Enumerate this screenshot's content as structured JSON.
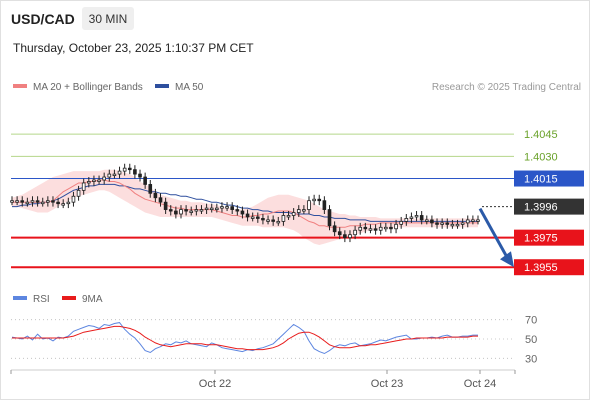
{
  "header": {
    "symbol": "USD/CAD",
    "timeframe": "30 MIN",
    "datetime": "Thursday, October 23, 2025 1:10:37 PM CET"
  },
  "legend": {
    "ma20_label": "MA 20 + Bollinger Bands",
    "ma50_label": "MA 50",
    "credit": "Research © 2025 Trading Central"
  },
  "colors": {
    "candle": "#222222",
    "band_fill": "#fbd3d3",
    "ma20": "#f08080",
    "ma50": "#2e4f9e",
    "resistance_green": "#b5d68a",
    "pivot_blue": "#2b56c8",
    "support_red": "#e8131b",
    "current_dark": "#333333",
    "rsi": "#5d86e0",
    "rsi_ma": "#e81c1c",
    "label_green_text": "#6aa22a"
  },
  "chart_data": [
    {
      "type": "line",
      "title": "USD/CAD",
      "timeframe": "30 MIN",
      "x_ticks": [
        "Oct 22",
        "Oct 23",
        "Oct 24"
      ],
      "ylim": [
        1.3945,
        1.406
      ],
      "series": [
        {
          "name": "Price",
          "values": [
            1.4,
            1.4,
            1.3999,
            1.3999,
            1.4,
            1.3999,
            1.3999,
            1.4,
            1.3999,
            1.3998,
            1.3998,
            1.3999,
            1.4003,
            1.4007,
            1.4012,
            1.4013,
            1.4014,
            1.4014,
            1.4016,
            1.4018,
            1.4018,
            1.402,
            1.4022,
            1.4021,
            1.4018,
            1.4016,
            1.4011,
            1.4005,
            1.4002,
            1.3999,
            1.3994,
            1.3993,
            1.3991,
            1.3994,
            1.3993,
            1.3993,
            1.3994,
            1.3994,
            1.3995,
            1.3995,
            1.3995,
            1.3996,
            1.3996,
            1.3994,
            1.3993,
            1.3991,
            1.3989,
            1.3989,
            1.3988,
            1.3987,
            1.3987,
            1.3986,
            1.3986,
            1.399,
            1.399,
            1.3992,
            1.3994,
            1.3994,
            1.4,
            1.4001,
            1.4,
            1.3994,
            1.3983,
            1.3979,
            1.3977,
            1.3975,
            1.3977,
            1.398,
            1.3982,
            1.3981,
            1.3981,
            1.398,
            1.3982,
            1.3982,
            1.3981,
            1.3984,
            1.3986,
            1.3988,
            1.3989,
            1.399,
            1.3987,
            1.3987,
            1.3985,
            1.3984,
            1.3985,
            1.3984,
            1.3984,
            1.3984,
            1.3985,
            1.3987,
            1.3987,
            1.3987
          ]
        },
        {
          "name": "MA 20",
          "values": [
            1.3999,
            1.3999,
            1.3999,
            1.3999,
            1.3999,
            1.3999,
            1.3999,
            1.3999,
            1.4,
            1.4003,
            1.4006,
            1.4008,
            1.401,
            1.4012,
            1.4012,
            1.4013,
            1.4013,
            1.4014,
            1.4014,
            1.4013,
            1.4013,
            1.4012,
            1.401,
            1.4008,
            1.4005,
            1.4003,
            1.4001,
            1.4,
            1.3999,
            1.3998,
            1.3997,
            1.3996,
            1.3995,
            1.3995,
            1.3994,
            1.3994,
            1.3994,
            1.3994,
            1.3994,
            1.3994,
            1.3993,
            1.3992,
            1.3991,
            1.399,
            1.399,
            1.3989,
            1.3989,
            1.399,
            1.399,
            1.3991,
            1.3991,
            1.3992,
            1.3993,
            1.3993,
            1.3993,
            1.3992,
            1.399,
            1.3988,
            1.3986,
            1.3985,
            1.3983,
            1.3983,
            1.3982,
            1.3982,
            1.3982,
            1.3982,
            1.3983,
            1.3983,
            1.3983,
            1.3984,
            1.3984,
            1.3984,
            1.3985,
            1.3985,
            1.3985,
            1.3985,
            1.3985,
            1.3985,
            1.3985,
            1.3985,
            1.3985,
            1.3985,
            1.3985,
            1.3985,
            1.3985,
            1.3985,
            1.3985,
            1.3985,
            1.3985,
            1.3985,
            1.3985,
            1.3985
          ]
        },
        {
          "name": "MA 50",
          "values": [
            1.3996,
            1.3996,
            1.3997,
            1.3997,
            1.3998,
            1.3998,
            1.3999,
            1.3999,
            1.4,
            1.4001,
            1.4003,
            1.4005,
            1.4007,
            1.4008,
            1.4009,
            1.401,
            1.401,
            1.4011,
            1.4011,
            1.4011,
            1.4011,
            1.401,
            1.401,
            1.4009,
            1.4008,
            1.4008,
            1.4007,
            1.4006,
            1.4006,
            1.4005,
            1.4005,
            1.4004,
            1.4004,
            1.4003,
            1.4003,
            1.4002,
            1.4001,
            1.4001,
            1.4,
            1.3999,
            1.3999,
            1.3998,
            1.3997,
            1.3997,
            1.3996,
            1.3995,
            1.3995,
            1.3994,
            1.3994,
            1.3993,
            1.3993,
            1.3992,
            1.3992,
            1.3992,
            1.3992,
            1.3991,
            1.3991,
            1.3991,
            1.3991,
            1.399,
            1.399,
            1.3989,
            1.3989,
            1.3988,
            1.3988,
            1.3988,
            1.3987,
            1.3987,
            1.3987,
            1.3987,
            1.3986,
            1.3986,
            1.3986,
            1.3986,
            1.3986,
            1.3986,
            1.3986,
            1.3986,
            1.3986,
            1.3986,
            1.3986,
            1.3986,
            1.3986,
            1.3986,
            1.3986,
            1.3986,
            1.3986,
            1.3986,
            1.3986,
            1.3986,
            1.3986,
            1.3986
          ]
        },
        {
          "name": "Bollinger Upper",
          "values": [
            1.4002,
            1.4003,
            1.4004,
            1.4006,
            1.4008,
            1.401,
            1.4012,
            1.4014,
            1.4016,
            1.4017,
            1.4018,
            1.4019,
            1.402,
            1.402,
            1.402,
            1.402,
            1.402,
            1.402,
            1.4021,
            1.4021,
            1.4021,
            1.402,
            1.4019,
            1.4018,
            1.4016,
            1.4013,
            1.4011,
            1.4009,
            1.4006,
            1.4004,
            1.4003,
            1.4002,
            1.4001,
            1.4,
            1.4,
            1.3999,
            1.3999,
            1.3999,
            1.3998,
            1.3998,
            1.3997,
            1.3996,
            1.3995,
            1.3995,
            1.3994,
            1.3994,
            1.3995,
            1.3996,
            1.3998,
            1.4,
            1.4002,
            1.4003,
            1.4004,
            1.4004,
            1.4004,
            1.4003,
            1.4002,
            1.4001,
            1.4,
            1.3998,
            1.3996,
            1.3994,
            1.3993,
            1.3992,
            1.3991,
            1.3991,
            1.399,
            1.399,
            1.3989,
            1.3989,
            1.3989,
            1.3989,
            1.3988,
            1.3988,
            1.3988,
            1.3988,
            1.3988,
            1.3988,
            1.3988,
            1.3988,
            1.3988,
            1.3988,
            1.3988,
            1.3988,
            1.3988,
            1.3988,
            1.3988,
            1.3988,
            1.3988,
            1.3988,
            1.3988,
            1.3988
          ]
        },
        {
          "name": "Bollinger Lower",
          "values": [
            1.3996,
            1.3996,
            1.3995,
            1.3994,
            1.3993,
            1.3992,
            1.3992,
            1.3992,
            1.3994,
            1.3996,
            1.3998,
            1.4,
            1.4002,
            1.4003,
            1.4004,
            1.4005,
            1.4006,
            1.4007,
            1.4007,
            1.4006,
            1.4004,
            1.4002,
            1.4,
            1.3998,
            1.3996,
            1.3994,
            1.3992,
            1.3991,
            1.399,
            1.3989,
            1.3989,
            1.3989,
            1.3989,
            1.3989,
            1.3989,
            1.3989,
            1.3989,
            1.3989,
            1.3989,
            1.3989,
            1.3988,
            1.3987,
            1.3986,
            1.3985,
            1.3984,
            1.3983,
            1.3983,
            1.3983,
            1.3983,
            1.3982,
            1.3982,
            1.3982,
            1.3982,
            1.3982,
            1.3981,
            1.398,
            1.3978,
            1.3975,
            1.3973,
            1.3971,
            1.397,
            1.3971,
            1.3972,
            1.3973,
            1.3974,
            1.3975,
            1.3976,
            1.3977,
            1.3978,
            1.3979,
            1.398,
            1.398,
            1.3981,
            1.3981,
            1.3981,
            1.3982,
            1.3982,
            1.3982,
            1.3982,
            1.3982,
            1.3982,
            1.3982,
            1.3982,
            1.3982,
            1.3982,
            1.3982,
            1.3982,
            1.3982,
            1.3982,
            1.3982,
            1.3982,
            1.3982
          ]
        }
      ],
      "levels": [
        {
          "label": "1.4045",
          "value": 1.4045,
          "style": "resistance"
        },
        {
          "label": "1.4030",
          "value": 1.403,
          "style": "resistance"
        },
        {
          "label": "1.4015",
          "value": 1.4015,
          "style": "pivot"
        },
        {
          "label": "1.3996",
          "value": 1.3996,
          "style": "current"
        },
        {
          "label": "1.3975",
          "value": 1.3975,
          "style": "support"
        },
        {
          "label": "1.3955",
          "value": 1.3955,
          "style": "support"
        }
      ],
      "forecast_arrow": {
        "from": 1.3996,
        "to": 1.3955,
        "direction": "down"
      }
    },
    {
      "type": "line",
      "title": "RSI",
      "yticks": [
        70,
        50,
        30
      ],
      "ylim": [
        20,
        80
      ],
      "series": [
        {
          "name": "RSI",
          "values": [
            52,
            51,
            50,
            53,
            49,
            55,
            50,
            51,
            48,
            52,
            51,
            53,
            58,
            60,
            62,
            64,
            63,
            61,
            65,
            64,
            66,
            67,
            60,
            55,
            51,
            45,
            38,
            36,
            40,
            42,
            45,
            44,
            47,
            46,
            48,
            45,
            44,
            43,
            42,
            46,
            44,
            41,
            40,
            39,
            38,
            37,
            39,
            38,
            40,
            41,
            43,
            45,
            50,
            55,
            60,
            65,
            62,
            58,
            48,
            40,
            37,
            35,
            38,
            42,
            44,
            43,
            45,
            46,
            43,
            44,
            45,
            47,
            49,
            48,
            50,
            52,
            53,
            54,
            50,
            50,
            51,
            51,
            52,
            51,
            53,
            54,
            52,
            52,
            53,
            53,
            54,
            54
          ]
        },
        {
          "name": "9MA",
          "values": [
            51,
            51,
            51,
            51,
            51,
            51,
            51,
            51,
            51,
            51,
            51,
            52,
            53,
            55,
            57,
            58,
            59,
            60,
            61,
            62,
            63,
            63,
            62,
            61,
            59,
            56,
            52,
            49,
            46,
            44,
            43,
            42,
            43,
            44,
            45,
            45,
            45,
            45,
            44,
            44,
            44,
            43,
            42,
            41,
            40,
            40,
            39,
            39,
            39,
            39,
            40,
            41,
            43,
            46,
            50,
            53,
            56,
            57,
            57,
            55,
            52,
            48,
            44,
            42,
            41,
            41,
            41,
            42,
            43,
            43,
            44,
            44,
            45,
            46,
            47,
            48,
            49,
            50,
            50,
            51,
            51,
            51,
            51,
            51,
            51,
            52,
            52,
            52,
            52,
            52,
            53,
            53
          ]
        }
      ]
    }
  ]
}
